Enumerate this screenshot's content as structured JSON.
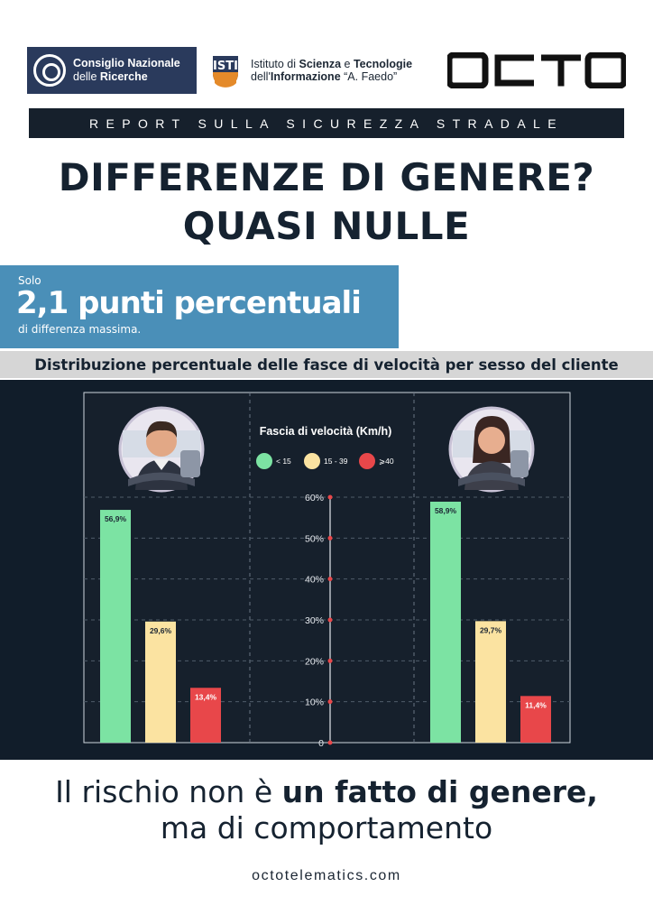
{
  "header": {
    "cnr": {
      "line1": "Consiglio Nazionale",
      "line2_a": "delle ",
      "line2_b": "Ricerche"
    },
    "isti": {
      "line1_a": "Istituto di ",
      "line1_b": "Scienza",
      "line1_c": " e ",
      "line1_d": "Tecnologie",
      "line2_a": "dell'",
      "line2_b": "Informazione",
      "line2_c": " “A. Faedo”"
    },
    "octo": "OCTO"
  },
  "band_text": "REPORT SULLA SICUREZZA STRADALE",
  "headline": {
    "line1": "DIFFERENZE DI GENERE?",
    "line2": "QUASI NULLE"
  },
  "callout": {
    "pre": "Solo",
    "big": "2,1 punti percentuali",
    "post": "di differenza massima."
  },
  "subtitle": "Distribuzione percentuale delle fasce di velocità per sesso del cliente",
  "chart_data": {
    "type": "bar",
    "legend_title": "Fascia di velocità (Km/h)",
    "categories": [
      "< 15",
      "15 - 39",
      "⩾40"
    ],
    "colors": [
      "#7ce3a3",
      "#fbe3a1",
      "#e8474a"
    ],
    "y_ticks": [
      "0",
      "10%",
      "20%",
      "30%",
      "40%",
      "50%",
      "60%"
    ],
    "ylim": [
      0,
      60
    ],
    "groups": [
      {
        "values": [
          56.9,
          29.6,
          13.4
        ],
        "labels": [
          "56,9%",
          "29,6%",
          "13,4%"
        ]
      },
      {
        "values": [
          58.9,
          29.7,
          11.4
        ],
        "labels": [
          "58,9%",
          "29,7%",
          "11,4%"
        ]
      }
    ],
    "grid": true
  },
  "tagline": {
    "a": "Il rischio non è ",
    "b": "un fatto di genere,",
    "c": "ma di comportamento"
  },
  "site": "octotelematics.com",
  "colors": {
    "dark": "#111d2a",
    "accent_blue": "#4a8fb8",
    "navy": "#2a3a5c"
  }
}
